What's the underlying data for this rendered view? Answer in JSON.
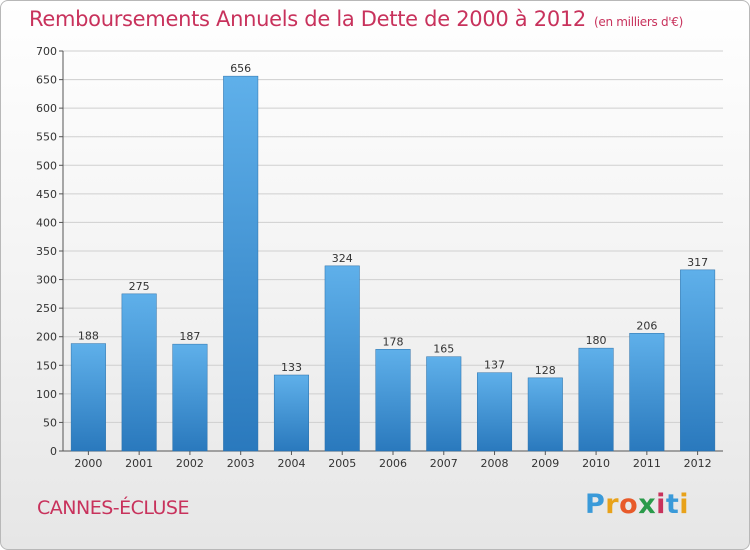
{
  "chart_data": {
    "type": "bar",
    "title": "Remboursements Annuels de la Dette de 2000 à 2012",
    "units": "(en milliers d'€)",
    "categories": [
      "2000",
      "2001",
      "2002",
      "2003",
      "2004",
      "2005",
      "2006",
      "2007",
      "2008",
      "2009",
      "2010",
      "2011",
      "2012"
    ],
    "values": [
      188,
      275,
      187,
      656,
      133,
      324,
      178,
      165,
      137,
      128,
      180,
      206,
      317
    ],
    "ylim": [
      0,
      700
    ],
    "yticks": [
      0,
      50,
      100,
      150,
      200,
      250,
      300,
      350,
      400,
      450,
      500,
      550,
      600,
      650,
      700
    ],
    "grid": true,
    "bar_color_top": "#5fb0ea",
    "bar_color_bottom": "#2a79bd"
  },
  "location": "CANNES-ÉCLUSE",
  "logo": {
    "letters": [
      "P",
      "r",
      "o",
      "x",
      "i",
      "t",
      "i"
    ],
    "colors": [
      "#3a9ad9",
      "#e8a21a",
      "#e85a2a",
      "#2a9a4a",
      "#c8325c",
      "#3a9ad9",
      "#e8a21a"
    ]
  }
}
